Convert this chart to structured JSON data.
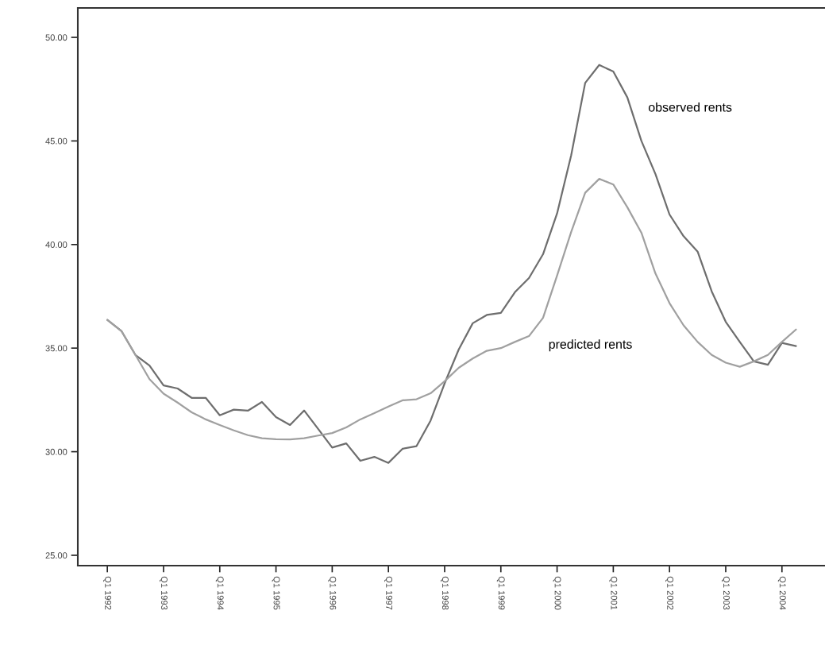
{
  "chart_data": {
    "type": "line",
    "categories": [
      "Q1 1992",
      null,
      null,
      null,
      "Q1 1993",
      null,
      null,
      null,
      "Q1 1994",
      null,
      null,
      null,
      "Q1 1995",
      null,
      null,
      null,
      "Q1 1996",
      null,
      null,
      null,
      "Q1 1997",
      null,
      null,
      null,
      "Q1 1998",
      null,
      null,
      null,
      "Q1 1999",
      null,
      null,
      null,
      "Q1 2000",
      null,
      null,
      null,
      "Q1 2001",
      null,
      null,
      null,
      "Q1 2002",
      null,
      null,
      null,
      "Q1 2003",
      null,
      null,
      null,
      "Q1 2004",
      null
    ],
    "series": [
      {
        "color": "#6e6e6e",
        "values": [
          36.36,
          35.83,
          34.67,
          34.16,
          33.2,
          33.05,
          32.6,
          32.6,
          31.76,
          32.03,
          31.98,
          32.4,
          31.67,
          31.29,
          31.99,
          31.1,
          30.2,
          30.4,
          29.56,
          29.75,
          29.46,
          30.14,
          30.27,
          31.5,
          33.3,
          34.93,
          36.2,
          36.6,
          36.7,
          37.7,
          38.38,
          39.53,
          41.5,
          44.3,
          47.8,
          48.67,
          48.35,
          47.1,
          45.0,
          43.4,
          41.45,
          40.4,
          39.66,
          37.74,
          36.27,
          35.3,
          34.36,
          34.2,
          35.25,
          35.1
        ]
      },
      {
        "color": "#a0a0a0",
        "values": [
          36.36,
          35.83,
          34.67,
          33.5,
          32.8,
          32.37,
          31.9,
          31.56,
          31.29,
          31.03,
          30.8,
          30.65,
          30.6,
          30.59,
          30.65,
          30.78,
          30.9,
          31.17,
          31.56,
          31.86,
          32.18,
          32.48,
          32.53,
          32.82,
          33.4,
          34.05,
          34.5,
          34.87,
          35.0,
          35.3,
          35.58,
          36.46,
          38.5,
          40.6,
          42.5,
          43.17,
          42.9,
          41.8,
          40.57,
          38.6,
          37.17,
          36.1,
          35.3,
          34.67,
          34.3,
          34.1,
          34.36,
          34.67,
          35.3,
          35.9
        ]
      }
    ],
    "annotations": [
      "observed rents",
      "predicted rents"
    ],
    "ylim": [
      24.5,
      51.42
    ],
    "yticks": [
      {
        "value": 25,
        "label": "25.00"
      },
      {
        "value": 30,
        "label": "30.00"
      },
      {
        "value": 35,
        "label": "35.00"
      },
      {
        "value": 40,
        "label": "40.00"
      },
      {
        "value": 45,
        "label": "45.00"
      },
      {
        "value": 50,
        "label": "50.00"
      }
    ],
    "grid": false,
    "legend": false,
    "marker": "none",
    "line_style": "solid"
  }
}
